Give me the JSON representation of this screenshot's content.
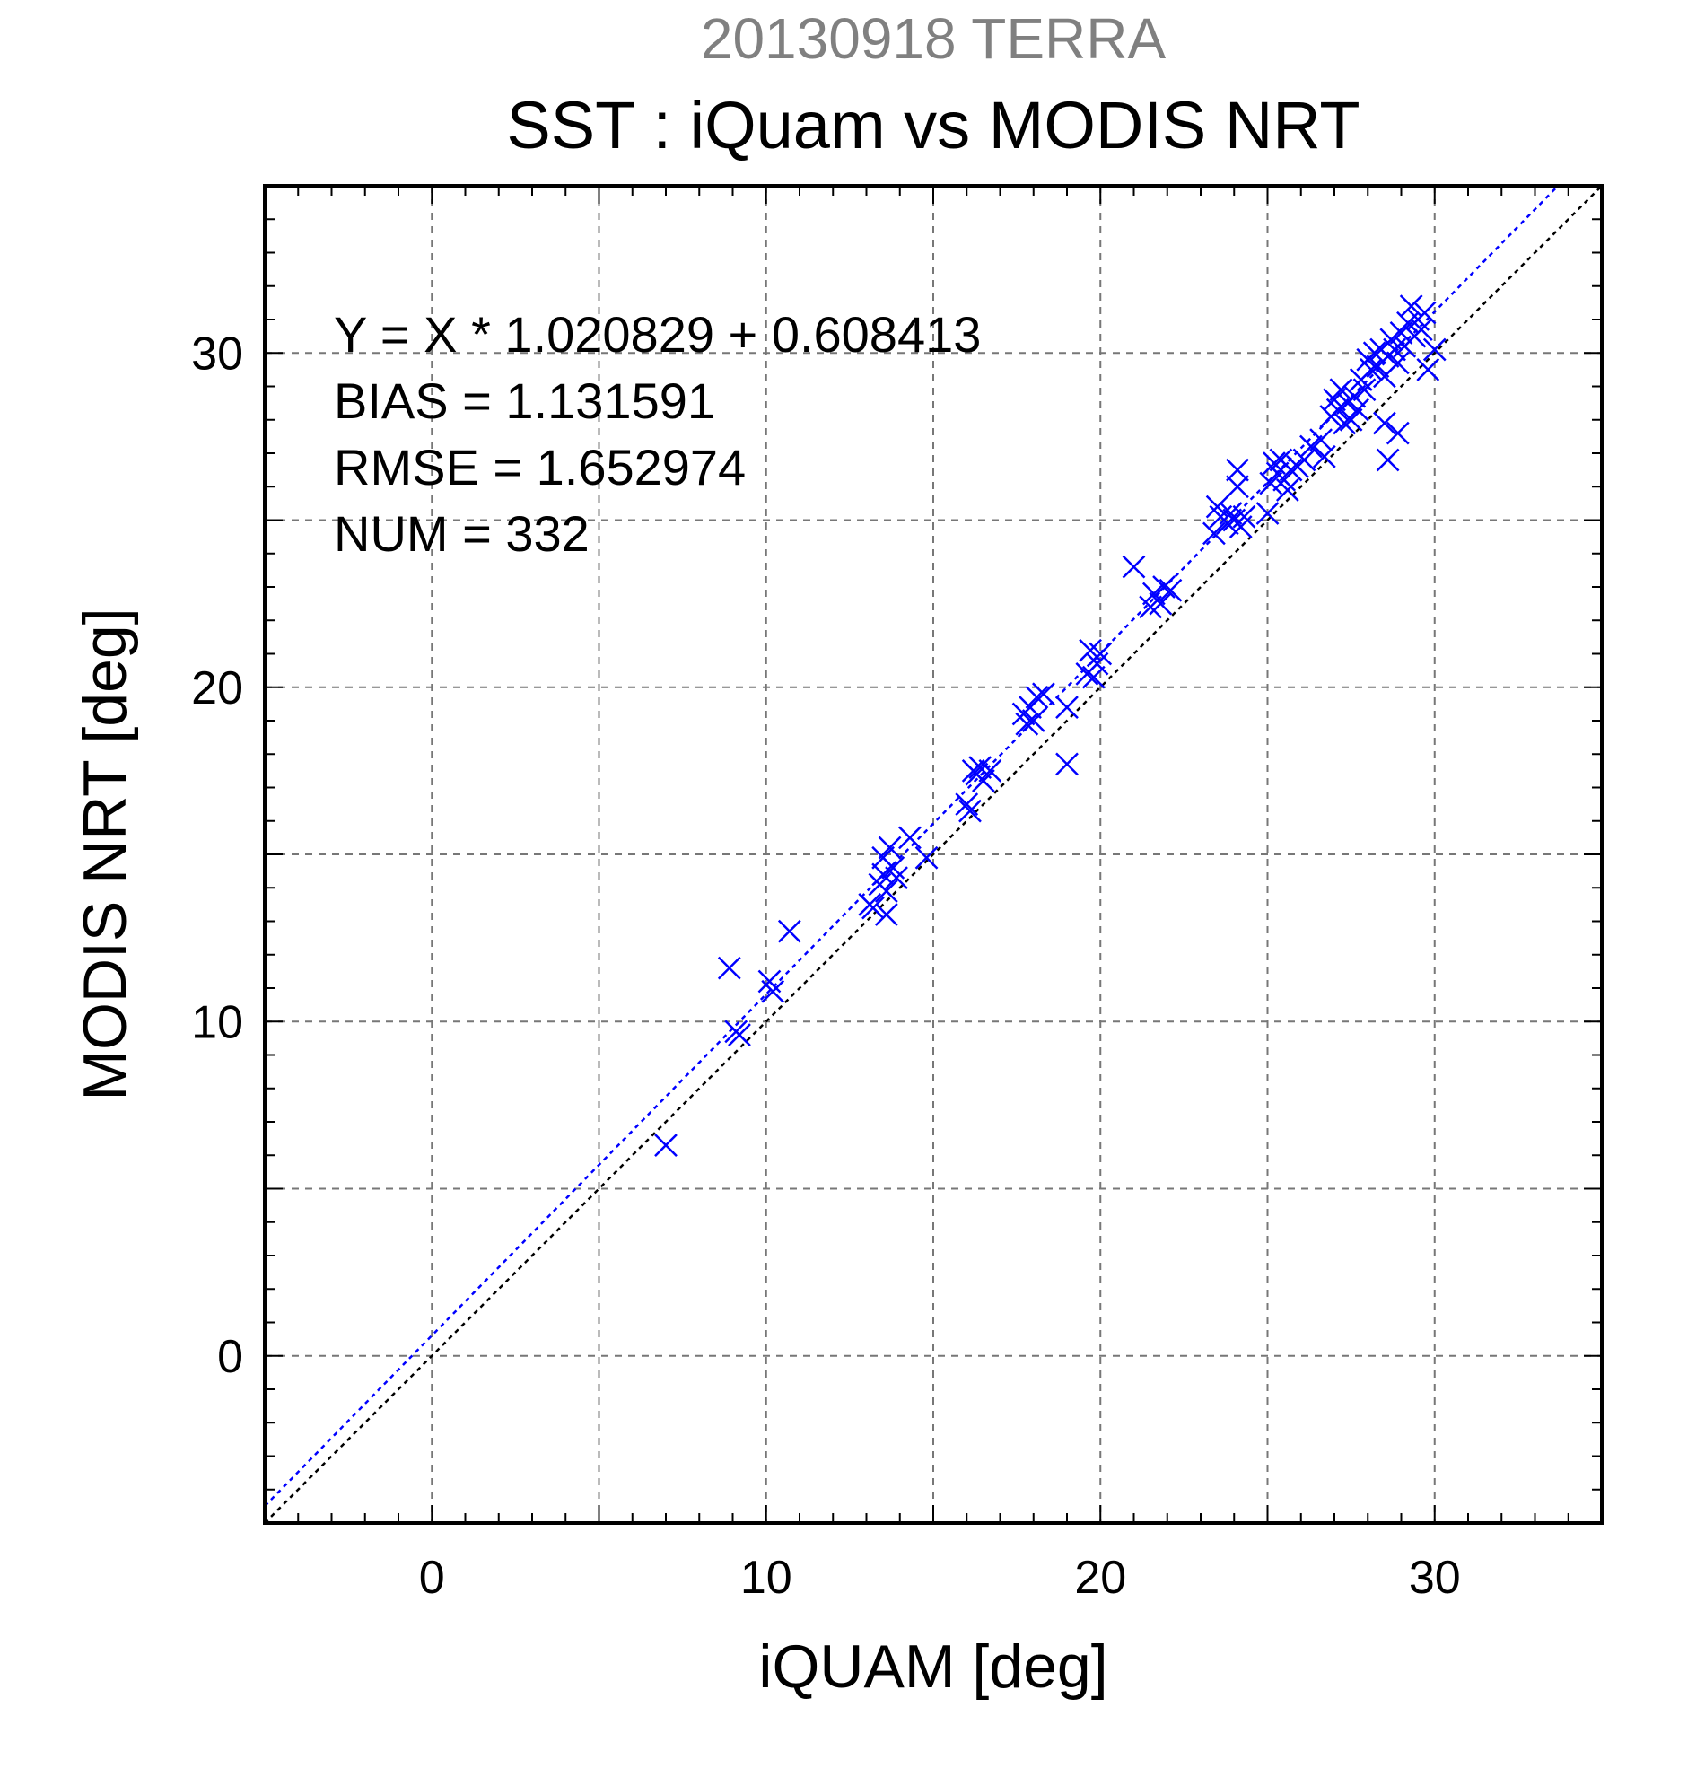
{
  "chart_data": {
    "type": "scatter",
    "date_label": "20130918 TERRA",
    "title": "SST : iQuam vs MODIS NRT",
    "xlabel": "iQUAM [deg]",
    "ylabel": "MODIS NRT [deg]",
    "xlim": [
      -5,
      35
    ],
    "ylim": [
      -5,
      35
    ],
    "xticks": [
      0,
      10,
      20,
      30
    ],
    "yticks": [
      0,
      10,
      20,
      30
    ],
    "xtick_labels": [
      "0",
      "10",
      "20",
      "30"
    ],
    "ytick_labels": [
      "0",
      "10",
      "20",
      "30"
    ],
    "grid": true,
    "stats": {
      "equation": "Y = X * 1.020829 + 0.608413",
      "bias": "BIAS = 1.131591",
      "rmse": "RMSE = 1.652974",
      "num": "NUM = 332"
    },
    "regression": {
      "slope": 1.020829,
      "intercept": 0.608413,
      "color": "#0000ff"
    },
    "identity_line": {
      "slope": 1,
      "intercept": 0,
      "color": "#000000"
    },
    "marker": {
      "symbol": "x",
      "color": "#0000ff"
    },
    "points": [
      [
        7.0,
        6.3
      ],
      [
        8.9,
        11.6
      ],
      [
        9.1,
        9.7
      ],
      [
        9.2,
        9.6
      ],
      [
        10.1,
        11.2
      ],
      [
        10.2,
        10.9
      ],
      [
        10.7,
        12.7
      ],
      [
        13.1,
        13.5
      ],
      [
        13.2,
        13.4
      ],
      [
        13.4,
        14.1
      ],
      [
        13.5,
        14.4
      ],
      [
        13.5,
        14.9
      ],
      [
        13.6,
        13.9
      ],
      [
        13.6,
        13.2
      ],
      [
        13.7,
        15.2
      ],
      [
        13.8,
        14.6
      ],
      [
        13.9,
        14.3
      ],
      [
        14.3,
        15.5
      ],
      [
        14.8,
        14.9
      ],
      [
        16.0,
        16.5
      ],
      [
        16.1,
        16.3
      ],
      [
        16.2,
        17.5
      ],
      [
        16.3,
        17.4
      ],
      [
        16.4,
        17.6
      ],
      [
        16.5,
        17.2
      ],
      [
        16.7,
        17.5
      ],
      [
        17.7,
        19.2
      ],
      [
        17.8,
        18.9
      ],
      [
        17.9,
        19.4
      ],
      [
        18.0,
        19.0
      ],
      [
        18.1,
        19.7
      ],
      [
        18.3,
        19.8
      ],
      [
        19.0,
        19.4
      ],
      [
        19.0,
        17.7
      ],
      [
        19.6,
        20.4
      ],
      [
        19.7,
        21.1
      ],
      [
        19.8,
        20.3
      ],
      [
        19.9,
        20.7
      ],
      [
        20.0,
        21.0
      ],
      [
        21.0,
        23.6
      ],
      [
        21.5,
        22.4
      ],
      [
        21.6,
        22.8
      ],
      [
        21.8,
        22.5
      ],
      [
        21.9,
        23.0
      ],
      [
        22.1,
        22.9
      ],
      [
        23.4,
        24.6
      ],
      [
        23.5,
        25.4
      ],
      [
        23.6,
        25.1
      ],
      [
        23.8,
        24.9
      ],
      [
        23.9,
        25.2
      ],
      [
        24.0,
        25.0
      ],
      [
        24.1,
        26.5
      ],
      [
        24.1,
        26.0
      ],
      [
        24.2,
        24.8
      ],
      [
        24.3,
        25.1
      ],
      [
        25.0,
        25.2
      ],
      [
        25.1,
        26.1
      ],
      [
        25.2,
        26.7
      ],
      [
        25.3,
        26.4
      ],
      [
        25.4,
        26.8
      ],
      [
        25.5,
        26.2
      ],
      [
        25.6,
        25.9
      ],
      [
        25.7,
        26.5
      ],
      [
        25.9,
        26.6
      ],
      [
        26.1,
        26.8
      ],
      [
        26.3,
        27.2
      ],
      [
        26.6,
        27.4
      ],
      [
        26.7,
        26.9
      ],
      [
        26.9,
        28.1
      ],
      [
        27.0,
        28.6
      ],
      [
        27.1,
        28.3
      ],
      [
        27.2,
        28.9
      ],
      [
        27.3,
        27.9
      ],
      [
        27.4,
        28.5
      ],
      [
        27.5,
        28.0
      ],
      [
        27.6,
        28.7
      ],
      [
        27.7,
        28.3
      ],
      [
        27.8,
        29.2
      ],
      [
        27.9,
        28.9
      ],
      [
        28.0,
        29.8
      ],
      [
        28.1,
        29.5
      ],
      [
        28.2,
        30.0
      ],
      [
        28.3,
        29.6
      ],
      [
        28.4,
        30.1
      ],
      [
        28.5,
        29.3
      ],
      [
        28.5,
        27.9
      ],
      [
        28.6,
        29.9
      ],
      [
        28.6,
        26.8
      ],
      [
        28.7,
        30.4
      ],
      [
        28.8,
        30.1
      ],
      [
        28.9,
        29.7
      ],
      [
        28.9,
        27.6
      ],
      [
        29.0,
        30.6
      ],
      [
        29.1,
        30.2
      ],
      [
        29.2,
        30.9
      ],
      [
        29.3,
        31.4
      ],
      [
        29.4,
        30.5
      ],
      [
        29.5,
        31.0
      ],
      [
        29.6,
        30.7
      ],
      [
        29.7,
        31.2
      ],
      [
        29.8,
        29.5
      ],
      [
        30.0,
        30.1
      ]
    ]
  }
}
